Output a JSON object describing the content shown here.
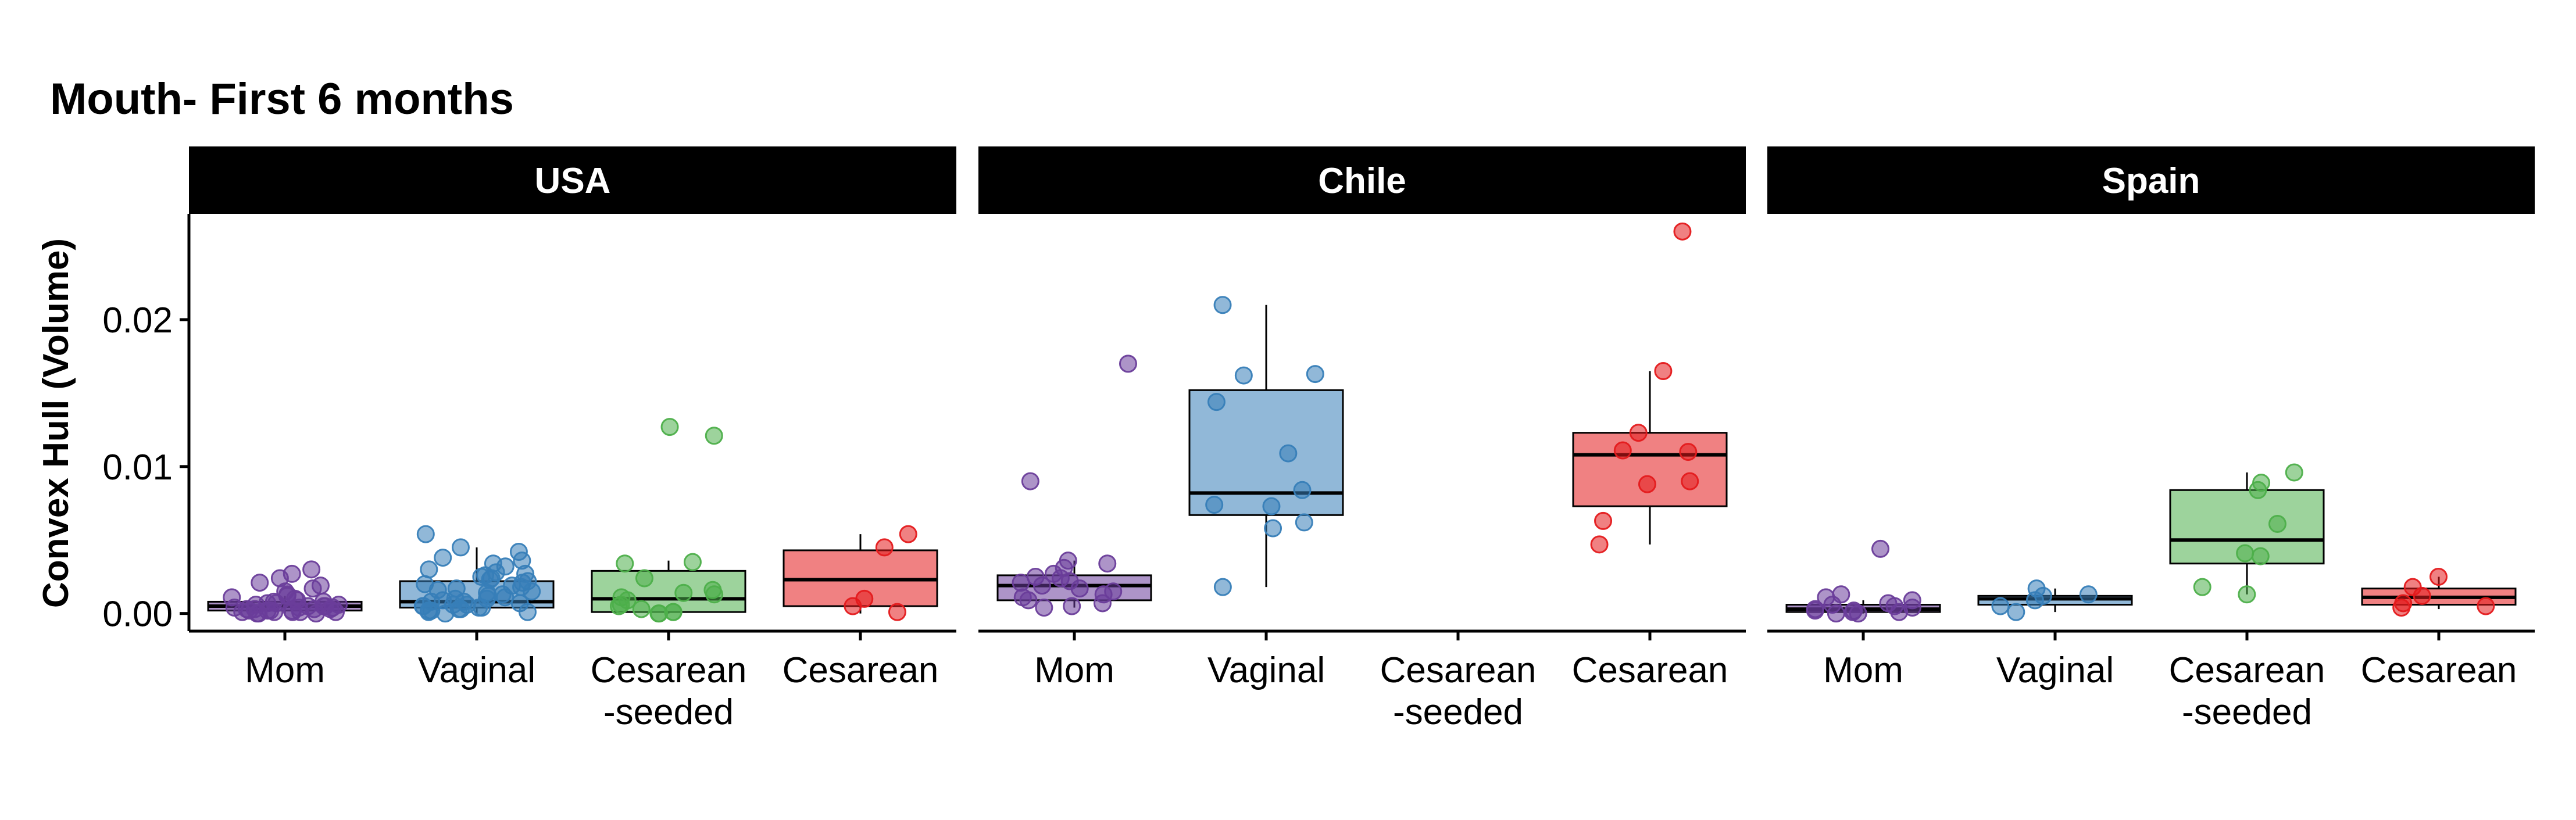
{
  "chart_data": {
    "type": "boxplot",
    "title": "Mouth- First 6 months",
    "ylabel": "Convex Hull (Volume)",
    "xlabel": "",
    "ylim": [
      -0.0012,
      0.0272
    ],
    "yticks": [
      0.0,
      0.01,
      0.02
    ],
    "ytick_labels": [
      "0.00",
      "0.01",
      "0.02"
    ],
    "categories": [
      "Mom",
      "Vaginal",
      "Cesarean-seeded",
      "Cesarean"
    ],
    "category_labels": [
      [
        "Mom"
      ],
      [
        "Vaginal"
      ],
      [
        "Cesarean",
        "-seeded"
      ],
      [
        "Cesarean"
      ]
    ],
    "colors": {
      "Mom": "#6a3d9a",
      "Vaginal": "#377eb8",
      "Cesarean-seeded": "#4daf4a",
      "Cesarean": "#e41a1c"
    },
    "strip_color": "#000000",
    "legend": "none",
    "grid": false,
    "panels": [
      {
        "name": "USA",
        "groups": [
          {
            "category": "Mom",
            "q1": 0.0002,
            "median": 0.0005,
            "q3": 0.0008,
            "whisker_low": 0.0,
            "whisker_high": 0.0012,
            "points": [
              0.003,
              0.0027,
              0.0024,
              0.0021,
              0.0019,
              0.0017,
              0.0015,
              0.0013,
              0.0012,
              0.0011,
              0.001,
              0.0009,
              0.0008,
              0.0008,
              0.0007,
              0.0007,
              0.0006,
              0.0006,
              0.0005,
              0.0005,
              0.0005,
              0.0004,
              0.0004,
              0.0004,
              0.0003,
              0.0003,
              0.0003,
              0.0003,
              0.0002,
              0.0002,
              0.0002,
              0.0002,
              0.0001,
              0.0001,
              0.0001,
              0.0001,
              0.0001,
              0.0,
              0.0,
              0.0
            ]
          },
          {
            "category": "Vaginal",
            "q1": 0.0004,
            "median": 0.0008,
            "q3": 0.0022,
            "whisker_low": 0.0,
            "whisker_high": 0.0045,
            "points": [
              0.0054,
              0.0045,
              0.0042,
              0.0038,
              0.0036,
              0.0034,
              0.0032,
              0.003,
              0.0028,
              0.0027,
              0.0026,
              0.0025,
              0.0024,
              0.0023,
              0.0022,
              0.0021,
              0.002,
              0.0019,
              0.0018,
              0.0017,
              0.0016,
              0.0015,
              0.0014,
              0.0013,
              0.0012,
              0.0011,
              0.001,
              0.001,
              0.0009,
              0.0008,
              0.0008,
              0.0007,
              0.0006,
              0.0006,
              0.0005,
              0.0005,
              0.0004,
              0.0004,
              0.0003,
              0.0003,
              0.0002,
              0.0002,
              0.0001,
              0.0001,
              0.0
            ]
          },
          {
            "category": "Cesarean-seeded",
            "q1": 0.0001,
            "median": 0.001,
            "q3": 0.0029,
            "whisker_low": 0.0,
            "whisker_high": 0.0036,
            "points": [
              0.0127,
              0.0121,
              0.0035,
              0.0034,
              0.0024,
              0.0016,
              0.0014,
              0.0013,
              0.0011,
              0.0009,
              0.0006,
              0.0005,
              0.0003,
              0.0001,
              0.0001,
              0.0,
              0.0
            ]
          },
          {
            "category": "Cesarean",
            "q1": 0.0005,
            "median": 0.0023,
            "q3": 0.0043,
            "whisker_low": 0.0,
            "whisker_high": 0.0054,
            "points": [
              0.0054,
              0.0045,
              0.001,
              0.0005,
              0.0001
            ]
          }
        ]
      },
      {
        "name": "Chile",
        "groups": [
          {
            "category": "Mom",
            "q1": 0.0009,
            "median": 0.0019,
            "q3": 0.0026,
            "whisker_low": 0.0004,
            "whisker_high": 0.0036,
            "points": [
              0.017,
              0.009,
              0.0036,
              0.0034,
              0.0031,
              0.0027,
              0.0025,
              0.0024,
              0.0022,
              0.0021,
              0.0019,
              0.0017,
              0.0015,
              0.0013,
              0.0011,
              0.0009,
              0.0007,
              0.0005,
              0.0004
            ]
          },
          {
            "category": "Vaginal",
            "q1": 0.0067,
            "median": 0.0082,
            "q3": 0.0152,
            "whisker_low": 0.0018,
            "whisker_high": 0.021,
            "points": [
              0.021,
              0.0163,
              0.0162,
              0.0144,
              0.0109,
              0.0084,
              0.0074,
              0.0073,
              0.0062,
              0.0058,
              0.0018
            ]
          },
          {
            "category": "Cesarean",
            "q1": 0.0073,
            "median": 0.0108,
            "q3": 0.0123,
            "whisker_low": 0.0047,
            "whisker_high": 0.0165,
            "points": [
              0.026,
              0.0165,
              0.0123,
              0.0111,
              0.011,
              0.009,
              0.0088,
              0.0063,
              0.0047
            ]
          }
        ]
      },
      {
        "name": "Spain",
        "groups": [
          {
            "category": "Mom",
            "q1": 0.0001,
            "median": 0.0003,
            "q3": 0.0006,
            "whisker_low": 0.0,
            "whisker_high": 0.0009,
            "points": [
              0.0044,
              0.0013,
              0.0011,
              0.0009,
              0.0007,
              0.0006,
              0.0005,
              0.0004,
              0.0003,
              0.0002,
              0.0002,
              0.0001,
              0.0001,
              0.0,
              0.0
            ]
          },
          {
            "category": "Vaginal",
            "q1": 0.0006,
            "median": 0.001,
            "q3": 0.0012,
            "whisker_low": 0.0001,
            "whisker_high": 0.0017,
            "points": [
              0.0017,
              0.0013,
              0.0012,
              0.0009,
              0.0005,
              0.0001
            ]
          },
          {
            "category": "Cesarean-seeded",
            "q1": 0.0034,
            "median": 0.005,
            "q3": 0.0084,
            "whisker_low": 0.0013,
            "whisker_high": 0.0096,
            "points": [
              0.0096,
              0.0089,
              0.0084,
              0.0061,
              0.0041,
              0.0039,
              0.0018,
              0.0013
            ]
          },
          {
            "category": "Cesarean",
            "q1": 0.0006,
            "median": 0.0011,
            "q3": 0.0017,
            "whisker_low": 0.0003,
            "whisker_high": 0.0025,
            "points": [
              0.0025,
              0.0018,
              0.0012,
              0.0007,
              0.0005,
              0.0004
            ]
          }
        ]
      }
    ]
  }
}
